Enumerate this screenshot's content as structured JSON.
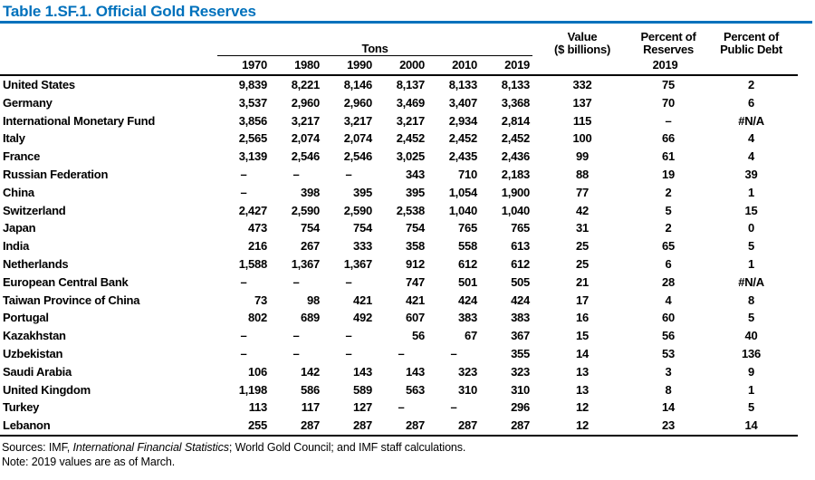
{
  "title": "Table 1.SF.1. Official Gold Reserves",
  "colors": {
    "accent_blue": "#0071bc",
    "rule_black": "#000000"
  },
  "table": {
    "group_headers": {
      "tons": "Tons",
      "value_line1": "Value",
      "value_line2": "($ billions)",
      "pct_reserves_line1": "Percent of",
      "pct_reserves_line2": "Reserves",
      "pct_debt_line1": "Percent of",
      "pct_debt_line2": "Public Debt"
    },
    "year_columns": [
      "1970",
      "1980",
      "1990",
      "2000",
      "2010",
      "2019"
    ],
    "right_subheader": "2019",
    "rows": [
      {
        "name": "United States",
        "values": [
          "9,839",
          "8,221",
          "8,146",
          "8,137",
          "8,133",
          "8,133",
          "332",
          "75",
          "2"
        ]
      },
      {
        "name": "Germany",
        "values": [
          "3,537",
          "2,960",
          "2,960",
          "3,469",
          "3,407",
          "3,368",
          "137",
          "70",
          "6"
        ]
      },
      {
        "name": "International Monetary Fund",
        "values": [
          "3,856",
          "3,217",
          "3,217",
          "3,217",
          "2,934",
          "2,814",
          "115",
          "–",
          "#N/A"
        ]
      },
      {
        "name": "Italy",
        "values": [
          "2,565",
          "2,074",
          "2,074",
          "2,452",
          "2,452",
          "2,452",
          "100",
          "66",
          "4"
        ]
      },
      {
        "name": "France",
        "values": [
          "3,139",
          "2,546",
          "2,546",
          "3,025",
          "2,435",
          "2,436",
          "99",
          "61",
          "4"
        ]
      },
      {
        "name": "Russian Federation",
        "values": [
          "–",
          "–",
          "–",
          "343",
          "710",
          "2,183",
          "88",
          "19",
          "39"
        ]
      },
      {
        "name": "China",
        "values": [
          "–",
          "398",
          "395",
          "395",
          "1,054",
          "1,900",
          "77",
          "2",
          "1"
        ]
      },
      {
        "name": "Switzerland",
        "values": [
          "2,427",
          "2,590",
          "2,590",
          "2,538",
          "1,040",
          "1,040",
          "42",
          "5",
          "15"
        ]
      },
      {
        "name": "Japan",
        "values": [
          "473",
          "754",
          "754",
          "754",
          "765",
          "765",
          "31",
          "2",
          "0"
        ]
      },
      {
        "name": "India",
        "values": [
          "216",
          "267",
          "333",
          "358",
          "558",
          "613",
          "25",
          "65",
          "5"
        ]
      },
      {
        "name": "Netherlands",
        "values": [
          "1,588",
          "1,367",
          "1,367",
          "912",
          "612",
          "612",
          "25",
          "6",
          "1"
        ]
      },
      {
        "name": "European Central Bank",
        "values": [
          "–",
          "–",
          "–",
          "747",
          "501",
          "505",
          "21",
          "28",
          "#N/A"
        ]
      },
      {
        "name": "Taiwan Province of China",
        "values": [
          "73",
          "98",
          "421",
          "421",
          "424",
          "424",
          "17",
          "4",
          "8"
        ]
      },
      {
        "name": "Portugal",
        "values": [
          "802",
          "689",
          "492",
          "607",
          "383",
          "383",
          "16",
          "60",
          "5"
        ]
      },
      {
        "name": "Kazakhstan",
        "values": [
          "–",
          "–",
          "–",
          "56",
          "67",
          "367",
          "15",
          "56",
          "40"
        ]
      },
      {
        "name": "Uzbekistan",
        "values": [
          "–",
          "–",
          "–",
          "–",
          "–",
          "355",
          "14",
          "53",
          "136"
        ]
      },
      {
        "name": "Saudi Arabia",
        "values": [
          "106",
          "142",
          "143",
          "143",
          "323",
          "323",
          "13",
          "3",
          "9"
        ]
      },
      {
        "name": "United Kingdom",
        "values": [
          "1,198",
          "586",
          "589",
          "563",
          "310",
          "310",
          "13",
          "8",
          "1"
        ]
      },
      {
        "name": "Turkey",
        "values": [
          "113",
          "117",
          "127",
          "–",
          "–",
          "296",
          "12",
          "14",
          "5"
        ]
      },
      {
        "name": "Lebanon",
        "values": [
          "255",
          "287",
          "287",
          "287",
          "287",
          "287",
          "12",
          "23",
          "14"
        ]
      }
    ]
  },
  "footer": {
    "sources_prefix": "Sources: IMF, ",
    "sources_italic": "International Financial Statistics",
    "sources_suffix": "; World Gold Council; and IMF staff calculations.",
    "note": "Note: 2019 values are as of March."
  }
}
